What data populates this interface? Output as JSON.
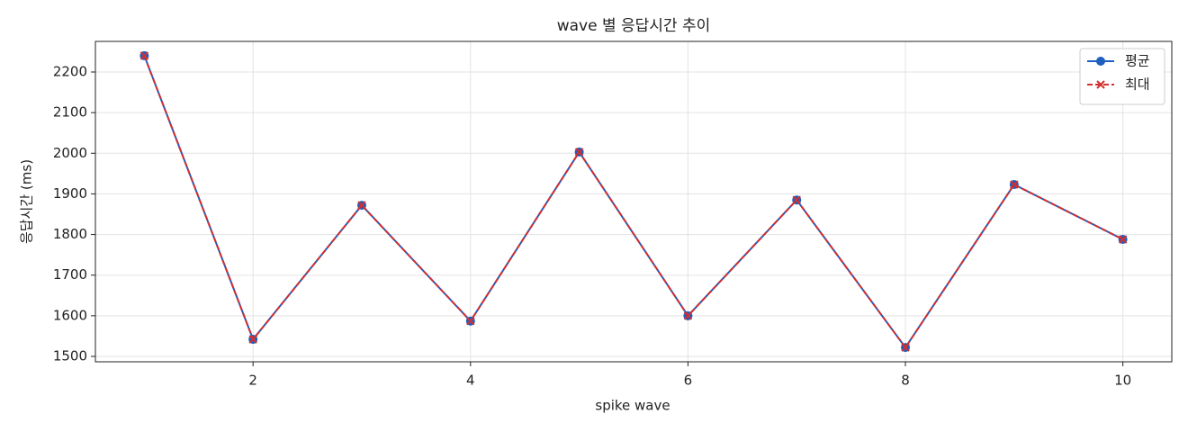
{
  "chart_data": {
    "type": "line",
    "title": "wave 별 응답시간 추이",
    "x_label": "spike wave",
    "y_label": "응답시간 (ms)",
    "x": [
      1,
      2,
      3,
      4,
      5,
      6,
      7,
      8,
      9,
      10
    ],
    "series": [
      {
        "name": "평균",
        "color": "#1f5fbf",
        "dash": false,
        "marker": "circle",
        "values": [
          2240,
          1542,
          1872,
          1587,
          2003,
          1600,
          1885,
          1522,
          1923,
          1788
        ]
      },
      {
        "name": "최대",
        "color": "#d32f2f",
        "dash": true,
        "marker": "x",
        "values": [
          2240,
          1542,
          1872,
          1587,
          2003,
          1600,
          1885,
          1522,
          1923,
          1788
        ]
      }
    ],
    "xlim": [
      0.55,
      10.45
    ],
    "ylim": [
      1486.7,
      2275.3
    ],
    "xticks": [
      2,
      4,
      6,
      8,
      10
    ],
    "yticks": [
      1500,
      1600,
      1700,
      1800,
      1900,
      2000,
      2100,
      2200
    ],
    "grid": true,
    "legend": "upper-right"
  }
}
